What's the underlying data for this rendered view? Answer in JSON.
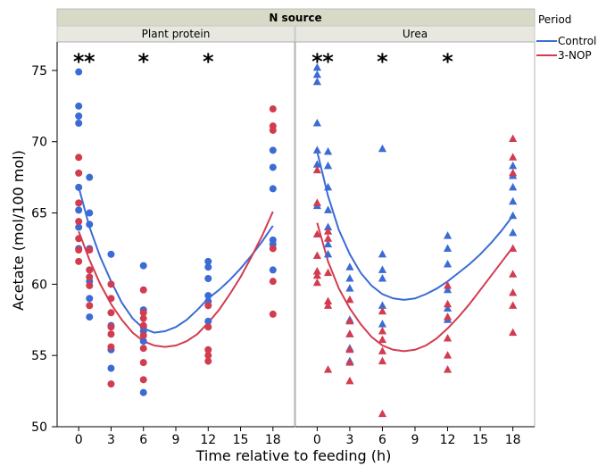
{
  "chart_data": {
    "type": "scatter",
    "strip_title": "N source",
    "ylabel": "Acetate (mol/100 mol)",
    "xlabel": "Time relative to feeding (h)",
    "ylim": [
      50,
      77
    ],
    "yticks": [
      50,
      55,
      60,
      65,
      70,
      75
    ],
    "xlim": [
      -2,
      20
    ],
    "xticks": [
      0,
      3,
      6,
      9,
      12,
      15,
      18
    ],
    "legend": {
      "title": "Period",
      "position": "right"
    },
    "series": [
      {
        "name": "Control",
        "color": "#3b6bd4"
      },
      {
        "name": "3-NOP",
        "color": "#d23c50"
      }
    ],
    "panels": [
      {
        "title": "Plant protein",
        "marker": "circle",
        "significance": {
          "symbol": "*",
          "times": [
            0,
            1,
            6,
            12
          ]
        },
        "points": {
          "Control": [
            [
              0,
              74.9
            ],
            [
              0,
              72.5
            ],
            [
              0,
              71.8
            ],
            [
              0,
              71.3
            ],
            [
              0,
              66.8
            ],
            [
              0,
              65.2
            ],
            [
              0,
              64.0
            ],
            [
              0,
              62.5
            ],
            [
              1,
              67.5
            ],
            [
              1,
              65.0
            ],
            [
              1,
              64.2
            ],
            [
              1,
              62.5
            ],
            [
              1,
              61.0
            ],
            [
              1,
              60.2
            ],
            [
              1,
              59.0
            ],
            [
              1,
              57.7
            ],
            [
              3,
              62.1
            ],
            [
              3,
              57.1
            ],
            [
              3,
              55.4
            ],
            [
              3,
              54.1
            ],
            [
              6,
              61.3
            ],
            [
              6,
              58.2
            ],
            [
              6,
              57.0
            ],
            [
              6,
              56.7
            ],
            [
              6,
              56.0
            ],
            [
              6,
              52.4
            ],
            [
              12,
              61.6
            ],
            [
              12,
              61.2
            ],
            [
              12,
              60.4
            ],
            [
              12,
              59.2
            ],
            [
              12,
              58.8
            ],
            [
              12,
              57.4
            ],
            [
              18,
              69.4
            ],
            [
              18,
              68.2
            ],
            [
              18,
              66.7
            ],
            [
              18,
              63.1
            ],
            [
              18,
              62.8
            ],
            [
              18,
              61.0
            ]
          ],
          "3-NOP": [
            [
              0,
              68.9
            ],
            [
              0,
              67.8
            ],
            [
              0,
              65.7
            ],
            [
              0,
              64.4
            ],
            [
              0,
              63.2
            ],
            [
              0,
              62.4
            ],
            [
              0,
              61.6
            ],
            [
              1,
              62.4
            ],
            [
              1,
              61.0
            ],
            [
              1,
              60.5
            ],
            [
              1,
              59.9
            ],
            [
              1,
              58.5
            ],
            [
              3,
              60.0
            ],
            [
              3,
              59.0
            ],
            [
              3,
              58.0
            ],
            [
              3,
              57.0
            ],
            [
              3,
              56.5
            ],
            [
              3,
              55.6
            ],
            [
              3,
              53.0
            ],
            [
              6,
              59.6
            ],
            [
              6,
              58.0
            ],
            [
              6,
              57.6
            ],
            [
              6,
              57.1
            ],
            [
              6,
              56.4
            ],
            [
              6,
              55.5
            ],
            [
              6,
              54.5
            ],
            [
              6,
              53.3
            ],
            [
              12,
              58.5
            ],
            [
              12,
              57.0
            ],
            [
              12,
              55.4
            ],
            [
              12,
              55.0
            ],
            [
              12,
              54.6
            ],
            [
              18,
              72.3
            ],
            [
              18,
              71.1
            ],
            [
              18,
              70.8
            ],
            [
              18,
              62.5
            ],
            [
              18,
              60.2
            ],
            [
              18,
              57.9
            ]
          ]
        },
        "fits": {
          "Control": [
            [
              0,
              66.8
            ],
            [
              1,
              64.0
            ],
            [
              2,
              61.9
            ],
            [
              3,
              60.2
            ],
            [
              4,
              58.7
            ],
            [
              5,
              57.6
            ],
            [
              6,
              56.9
            ],
            [
              7,
              56.6
            ],
            [
              8,
              56.7
            ],
            [
              9,
              57.0
            ],
            [
              10,
              57.5
            ],
            [
              11,
              58.2
            ],
            [
              12,
              59.0
            ],
            [
              13,
              59.6
            ],
            [
              14,
              60.3
            ],
            [
              15,
              61.1
            ],
            [
              16,
              62.0
            ],
            [
              17,
              63.0
            ],
            [
              18,
              64.1
            ]
          ],
          "3-NOP": [
            [
              0,
              63.7
            ],
            [
              1,
              61.7
            ],
            [
              2,
              60.0
            ],
            [
              3,
              58.6
            ],
            [
              4,
              57.5
            ],
            [
              5,
              56.6
            ],
            [
              6,
              56.0
            ],
            [
              7,
              55.7
            ],
            [
              8,
              55.6
            ],
            [
              9,
              55.7
            ],
            [
              10,
              56.0
            ],
            [
              11,
              56.5
            ],
            [
              12,
              57.3
            ],
            [
              13,
              58.2
            ],
            [
              14,
              59.3
            ],
            [
              15,
              60.5
            ],
            [
              16,
              61.9
            ],
            [
              17,
              63.4
            ],
            [
              18,
              65.1
            ]
          ]
        }
      },
      {
        "title": "Urea",
        "marker": "triangle",
        "significance": {
          "symbol": "*",
          "times": [
            0,
            1,
            6,
            12
          ]
        },
        "points": {
          "Control": [
            [
              0,
              75.2
            ],
            [
              0,
              74.7
            ],
            [
              0,
              74.2
            ],
            [
              0,
              71.3
            ],
            [
              0,
              69.4
            ],
            [
              0,
              68.4
            ],
            [
              0,
              65.5
            ],
            [
              1,
              69.3
            ],
            [
              1,
              68.3
            ],
            [
              1,
              66.8
            ],
            [
              1,
              65.2
            ],
            [
              1,
              64.0
            ],
            [
              1,
              62.8
            ],
            [
              1,
              62.1
            ],
            [
              3,
              61.2
            ],
            [
              3,
              60.4
            ],
            [
              3,
              59.7
            ],
            [
              3,
              57.5
            ],
            [
              3,
              56.5
            ],
            [
              3,
              55.5
            ],
            [
              3,
              54.6
            ],
            [
              6,
              69.5
            ],
            [
              6,
              62.1
            ],
            [
              6,
              61.0
            ],
            [
              6,
              60.4
            ],
            [
              6,
              58.5
            ],
            [
              6,
              57.2
            ],
            [
              12,
              63.4
            ],
            [
              12,
              62.5
            ],
            [
              12,
              61.4
            ],
            [
              12,
              59.6
            ],
            [
              12,
              58.3
            ],
            [
              12,
              57.5
            ],
            [
              18,
              68.3
            ],
            [
              18,
              67.6
            ],
            [
              18,
              66.8
            ],
            [
              18,
              65.8
            ],
            [
              18,
              64.8
            ],
            [
              18,
              63.6
            ]
          ],
          "3-NOP": [
            [
              0,
              68.0
            ],
            [
              0,
              65.7
            ],
            [
              0,
              63.5
            ],
            [
              0,
              62.0
            ],
            [
              0,
              60.9
            ],
            [
              0,
              60.6
            ],
            [
              0,
              60.1
            ],
            [
              1,
              63.7
            ],
            [
              1,
              63.2
            ],
            [
              1,
              60.8
            ],
            [
              1,
              58.8
            ],
            [
              1,
              58.5
            ],
            [
              1,
              54.0
            ],
            [
              3,
              58.9
            ],
            [
              3,
              57.4
            ],
            [
              3,
              56.5
            ],
            [
              3,
              55.4
            ],
            [
              3,
              54.5
            ],
            [
              3,
              53.2
            ],
            [
              6,
              58.1
            ],
            [
              6,
              56.7
            ],
            [
              6,
              56.1
            ],
            [
              6,
              55.3
            ],
            [
              6,
              54.6
            ],
            [
              6,
              50.9
            ],
            [
              12,
              59.9
            ],
            [
              12,
              58.6
            ],
            [
              12,
              57.7
            ],
            [
              12,
              56.2
            ],
            [
              12,
              55.0
            ],
            [
              12,
              54.0
            ],
            [
              18,
              70.2
            ],
            [
              18,
              68.9
            ],
            [
              18,
              67.8
            ],
            [
              18,
              62.5
            ],
            [
              18,
              60.7
            ],
            [
              18,
              59.4
            ],
            [
              18,
              58.5
            ],
            [
              18,
              56.6
            ]
          ]
        },
        "fits": {
          "Control": [
            [
              0,
              69.3
            ],
            [
              1,
              66.2
            ],
            [
              2,
              63.8
            ],
            [
              3,
              62.1
            ],
            [
              4,
              60.8
            ],
            [
              5,
              59.9
            ],
            [
              6,
              59.3
            ],
            [
              7,
              59.0
            ],
            [
              8,
              58.9
            ],
            [
              9,
              59.0
            ],
            [
              10,
              59.3
            ],
            [
              11,
              59.7
            ],
            [
              12,
              60.2
            ],
            [
              13,
              60.8
            ],
            [
              14,
              61.4
            ],
            [
              15,
              62.1
            ],
            [
              16,
              62.9
            ],
            [
              17,
              63.8
            ],
            [
              18,
              64.8
            ]
          ],
          "3-NOP": [
            [
              0,
              64.3
            ],
            [
              1,
              61.6
            ],
            [
              2,
              59.7
            ],
            [
              3,
              58.3
            ],
            [
              4,
              57.2
            ],
            [
              5,
              56.3
            ],
            [
              6,
              55.7
            ],
            [
              7,
              55.4
            ],
            [
              8,
              55.3
            ],
            [
              9,
              55.4
            ],
            [
              10,
              55.7
            ],
            [
              11,
              56.2
            ],
            [
              12,
              56.9
            ],
            [
              13,
              57.7
            ],
            [
              14,
              58.6
            ],
            [
              15,
              59.6
            ],
            [
              16,
              60.6
            ],
            [
              17,
              61.6
            ],
            [
              18,
              62.6
            ]
          ]
        }
      }
    ]
  }
}
